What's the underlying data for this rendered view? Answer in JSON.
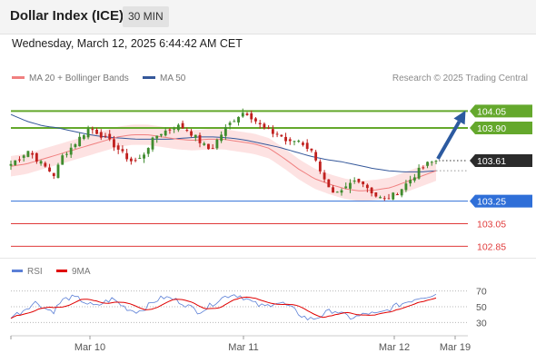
{
  "header": {
    "title": "Dollar Index (ICE)",
    "timeframe": "30 MIN"
  },
  "datetime": "Wednesday, March 12, 2025 6:44:42 AM CET",
  "legend": {
    "bollinger": {
      "label": "MA 20 + Bollinger Bands",
      "color": "#f08080"
    },
    "ma50": {
      "label": "MA 50",
      "color": "#35589a"
    }
  },
  "watermark": "Research © 2025 Trading Central",
  "rsi_legend": {
    "rsi": {
      "label": "RSI",
      "color": "#5b7fd6"
    },
    "ma9": {
      "label": "9MA",
      "color": "#e00000"
    }
  },
  "chart_data": {
    "type": "candlestick",
    "price_range": [
      102.78,
      104.15
    ],
    "x_labels": [
      "Mar 10",
      "Mar 11",
      "Mar 12",
      "Mar 19"
    ],
    "current_price": "103.61",
    "levels": [
      {
        "label": "104.05",
        "value": 104.05,
        "kind": "resistance",
        "color": "#64a82c"
      },
      {
        "label": "103.90",
        "value": 103.9,
        "kind": "resistance",
        "color": "#64a82c"
      },
      {
        "label": "103.25",
        "value": 103.25,
        "kind": "support",
        "color": "#2f6fd8"
      },
      {
        "label": "103.05",
        "value": 103.05,
        "kind": "support",
        "color": "#e03a3a"
      },
      {
        "label": "102.85",
        "value": 102.85,
        "kind": "support",
        "color": "#e03a3a"
      }
    ],
    "close_path": [
      103.58,
      103.64,
      103.7,
      103.62,
      103.55,
      103.48,
      103.66,
      103.73,
      103.82,
      103.9,
      103.86,
      103.8,
      103.74,
      103.66,
      103.6,
      103.63,
      103.76,
      103.85,
      103.88,
      103.92,
      103.9,
      103.84,
      103.76,
      103.7,
      103.82,
      103.92,
      104.0,
      104.05,
      103.98,
      103.9,
      103.86,
      103.84,
      103.76,
      103.8,
      103.74,
      103.66,
      103.45,
      103.3,
      103.32,
      103.4,
      103.45,
      103.38,
      103.3,
      103.26,
      103.3,
      103.36,
      103.44,
      103.52,
      103.58,
      103.61
    ],
    "ma20_path": [
      103.56,
      103.58,
      103.62,
      103.66,
      103.7,
      103.74,
      103.78,
      103.82,
      103.84,
      103.84,
      103.82,
      103.8,
      103.79,
      103.8,
      103.8,
      103.78,
      103.76,
      103.72,
      103.63,
      103.53,
      103.45,
      103.4,
      103.36,
      103.34,
      103.35,
      103.37,
      103.42,
      103.47,
      103.52
    ],
    "ma50_path": [
      104.02,
      103.96,
      103.92,
      103.9,
      103.87,
      103.84,
      103.82,
      103.81,
      103.8,
      103.8,
      103.8,
      103.81,
      103.82,
      103.82,
      103.81,
      103.79,
      103.76,
      103.73,
      103.69,
      103.65,
      103.62,
      103.6,
      103.57,
      103.54,
      103.52,
      103.51,
      103.51,
      103.52
    ],
    "band_width": 0.09,
    "rsi": {
      "levels": [
        70,
        50,
        30
      ],
      "range": [
        20,
        80
      ],
      "values": [
        38,
        42,
        50,
        56,
        48,
        44,
        58,
        62,
        60,
        54,
        50,
        56,
        60,
        52,
        46,
        44,
        50,
        58,
        62,
        60,
        56,
        50,
        44,
        48,
        56,
        62,
        66,
        64,
        58,
        52,
        50,
        56,
        54,
        48,
        40,
        34,
        36,
        42,
        46,
        40,
        36,
        38,
        42,
        40,
        44,
        50,
        54,
        58,
        62,
        64,
        66
      ]
    }
  }
}
